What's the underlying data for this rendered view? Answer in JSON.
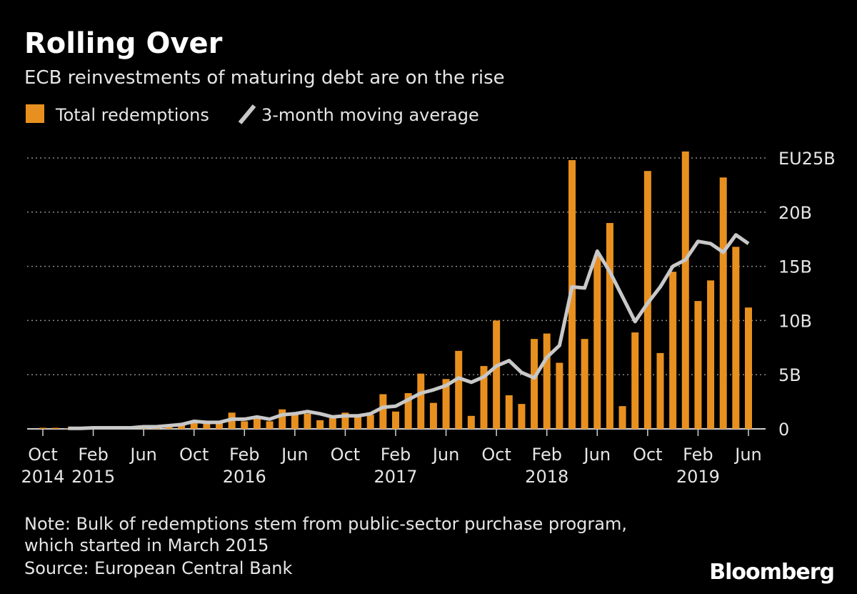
{
  "chart_data": {
    "type": "bar_line",
    "title": "Rolling Over",
    "subtitle": "ECB reinvestments of maturing debt are on the rise",
    "categories": [
      "Oct 2014",
      null,
      null,
      null,
      "Feb 2015",
      null,
      null,
      null,
      "Jun",
      null,
      null,
      null,
      "Oct",
      null,
      null,
      null,
      "Feb 2016",
      null,
      null,
      null,
      "Jun",
      null,
      null,
      null,
      "Oct",
      null,
      null,
      null,
      "Feb 2017",
      null,
      null,
      null,
      "Jun",
      null,
      null,
      null,
      "Oct",
      null,
      null,
      null,
      "Feb 2018",
      null,
      null,
      null,
      "Jun",
      null,
      null,
      null,
      "Oct",
      null,
      null,
      null,
      "Feb 2019",
      null,
      null,
      null,
      "Jun"
    ],
    "series": [
      {
        "name": "Total redemptions",
        "color": "#e8901f",
        "kind": "bar",
        "values": [
          0.1,
          0.1,
          0.05,
          0.05,
          0.1,
          0.1,
          0.1,
          0.1,
          0.2,
          0.2,
          0.3,
          0.4,
          0.6,
          0.7,
          0.6,
          1.5,
          0.7,
          1.1,
          0.7,
          1.8,
          1.4,
          1.4,
          0.8,
          1.0,
          1.5,
          1.3,
          1.3,
          3.2,
          1.6,
          3.3,
          5.1,
          2.4,
          4.6,
          7.2,
          1.2,
          5.8,
          10.0,
          3.1,
          2.3,
          8.3,
          8.8,
          6.1,
          24.8,
          8.3,
          16.0,
          19.0,
          2.1,
          8.9,
          23.8,
          7.0,
          14.5,
          25.6,
          11.8,
          13.7,
          23.2,
          16.8,
          11.2
        ]
      },
      {
        "name": "3-month moving average",
        "color": "#c8c8c8",
        "kind": "line",
        "values": [
          null,
          null,
          0.05,
          0.05,
          0.1,
          0.1,
          0.1,
          0.1,
          0.2,
          0.2,
          0.3,
          0.4,
          0.7,
          0.6,
          0.6,
          0.9,
          0.9,
          1.1,
          0.9,
          1.3,
          1.4,
          1.6,
          1.4,
          1.1,
          1.2,
          1.2,
          1.4,
          2.0,
          2.1,
          2.7,
          3.3,
          3.6,
          4.0,
          4.7,
          4.3,
          4.8,
          5.8,
          6.3,
          5.2,
          4.7,
          6.6,
          7.7,
          13.1,
          13.0,
          16.4,
          14.5,
          12.2,
          9.9,
          11.6,
          13.1,
          15.0,
          15.6,
          17.3,
          17.1,
          16.3,
          17.9,
          17.1
        ]
      }
    ],
    "ylim": [
      0,
      25.6
    ],
    "yticks": [
      0,
      {
        "value": 5,
        "label": "5B"
      },
      {
        "value": 10,
        "label": "10B"
      },
      {
        "value": 15,
        "label": "15B"
      },
      {
        "value": 20,
        "label": "20B"
      },
      {
        "value": 25,
        "label": "EU25B"
      }
    ],
    "grid": true,
    "note": [
      "Note: Bulk of redemptions stem from public-sector purchase program,",
      "which started in March 2015"
    ],
    "source": "Source: European Central Bank",
    "brand": "Bloomberg"
  }
}
